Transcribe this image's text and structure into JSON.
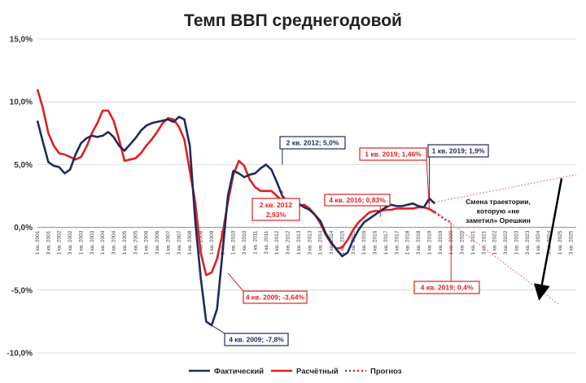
{
  "chart_data": {
    "type": "line",
    "title": "Темп ВВП среднегодовой",
    "ylim": [
      -10,
      15
    ],
    "yticks": [
      {
        "value": 15,
        "label": "15,0%"
      },
      {
        "value": 10,
        "label": "10,0%"
      },
      {
        "value": 5,
        "label": "5,0%"
      },
      {
        "value": 0,
        "label": "0,0%"
      },
      {
        "value": -5,
        "label": "-5,0%"
      },
      {
        "value": -10,
        "label": "-10,0%"
      }
    ],
    "xticks": [
      "1 кв. 2001",
      "3 кв. 2001",
      "1 кв. 2002",
      "3 кв. 2002",
      "1 кв. 2003",
      "3 кв. 2003",
      "1 кв. 2004",
      "3 кв. 2004",
      "1 кв. 2005",
      "3 кв. 2005",
      "1 кв. 2006",
      "3 кв. 2006",
      "1 кв. 2007",
      "3 кв. 2007",
      "1 кв. 2008",
      "3 кв. 2008",
      "1 кв. 2009",
      "3 кв. 2009",
      "1 кв. 2010",
      "3 кв. 2010",
      "1 кв. 2011",
      "3 кв. 2011",
      "1 кв. 2012",
      "3 кв. 2012",
      "1 кв. 2013",
      "3 кв. 2013",
      "1 кв. 2014",
      "3 кв. 2014",
      "1 кв. 2015",
      "3 кв. 2015",
      "1 кв. 2016",
      "3 кв. 2016",
      "1 кв. 2017",
      "3 кв. 2017",
      "1 кв. 2018",
      "3 кв. 2018",
      "1 кв. 2019",
      "3 кв. 2019",
      "1 кв. 2020",
      "3 кв. 2020",
      "1 кв. 2021",
      "3 кв. 2021",
      "1 кв. 2022",
      "3 кв. 2022",
      "1 кв. 2023",
      "3 кв. 2023",
      "1 кв. 2024",
      "3 кв. 2024",
      "1 кв. 2025",
      "3 кв. 2025"
    ],
    "series": [
      {
        "name": "Фактический",
        "color": "#1f2a5e",
        "style": "solid",
        "values": [
          8.5,
          6.8,
          5.2,
          4.9,
          4.8,
          4.3,
          4.6,
          5.8,
          6.7,
          7.1,
          7.3,
          7.2,
          7.3,
          7.6,
          7.2,
          6.5,
          6.1,
          6.6,
          7.1,
          7.7,
          8.1,
          8.3,
          8.4,
          8.5,
          8.6,
          8.4,
          8.8,
          8.6,
          6.5,
          0.5,
          -4.0,
          -7.5,
          -7.8,
          -6.5,
          -2.0,
          2.5,
          4.5,
          4.3,
          4.0,
          4.2,
          4.3,
          4.7,
          5.0,
          4.6,
          3.6,
          2.5,
          2.0,
          1.7,
          1.9,
          1.6,
          1.4,
          1.0,
          0.5,
          -0.5,
          -1.2,
          -1.8,
          -2.3,
          -2.0,
          -1.0,
          -0.2,
          0.4,
          0.7,
          1.0,
          1.3,
          1.6,
          1.8,
          1.7,
          1.7,
          1.8,
          1.9,
          1.7,
          1.6,
          2.3,
          1.9
        ]
      },
      {
        "name": "Расчётный",
        "color": "#e02020",
        "style": "solid",
        "values": [
          11.0,
          9.5,
          7.5,
          6.5,
          5.9,
          5.8,
          5.6,
          5.4,
          5.6,
          6.4,
          7.5,
          8.3,
          9.3,
          9.3,
          8.5,
          7.0,
          5.3,
          5.4,
          5.5,
          5.9,
          6.5,
          7.0,
          7.6,
          8.3,
          8.7,
          8.6,
          8.0,
          7.0,
          4.5,
          2.0,
          -2.0,
          -3.8,
          -3.6,
          -2.5,
          -0.5,
          2.0,
          4.2,
          5.3,
          4.9,
          3.8,
          3.2,
          2.9,
          2.9,
          2.9,
          2.5,
          2.1,
          1.6,
          1.5,
          1.7,
          1.8,
          1.5,
          1.0,
          0.3,
          -0.6,
          -1.3,
          -1.7,
          -1.6,
          -1.0,
          -0.2,
          0.4,
          0.8,
          1.2,
          1.3,
          1.3,
          1.4,
          1.4,
          1.5,
          1.5,
          1.5,
          1.5,
          1.6,
          1.6,
          1.46,
          1.2
        ]
      },
      {
        "name": "Прогноз",
        "color": "#e02020",
        "style": "dotted",
        "values": [
          1.2,
          0.9,
          0.6,
          0.4
        ]
      }
    ],
    "legend": {
      "position": "bottom",
      "entries": [
        "Фактический",
        "Расчётный",
        "Прогноз"
      ]
    },
    "annotations": [
      {
        "text": "2 кв. 2012; 5,0%",
        "color": "#1f2a5e"
      },
      {
        "text": "1 кв. 2019; 1,46%",
        "color": "#e02020"
      },
      {
        "text": "1 кв. 2019; 1,9%",
        "color": "#1f2a5e"
      },
      {
        "text": "2 кв. 2012",
        "text2": "2,93%",
        "color": "#e02020"
      },
      {
        "text": "4 кв. 2016; 0,83%",
        "color": "#e02020"
      },
      {
        "text": "4 кв. 2009; -3,64%",
        "color": "#e02020"
      },
      {
        "text": "4 кв. 2009; -7,8%",
        "color": "#1f2a5e"
      },
      {
        "text": "4 кв. 2019; 0,4%",
        "color": "#e02020"
      }
    ],
    "note": [
      "Смена траектории,",
      "которую «не",
      "заметил» Орешкин"
    ]
  }
}
